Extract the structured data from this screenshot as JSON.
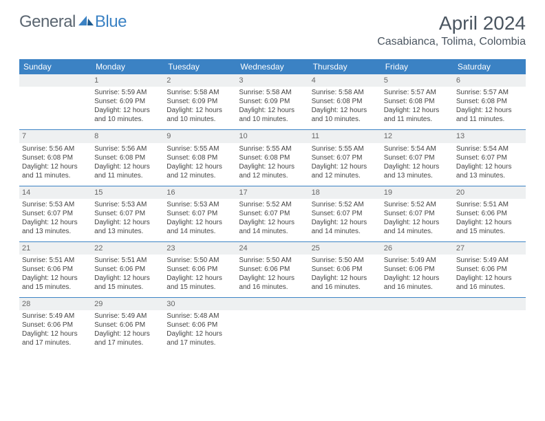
{
  "logo": {
    "text1": "General",
    "text2": "Blue"
  },
  "title": "April 2024",
  "location": "Casabianca, Tolima, Colombia",
  "colors": {
    "header_bg": "#3b82c4",
    "daynum_bg": "#eef0f1",
    "text": "#444"
  },
  "day_headers": [
    "Sunday",
    "Monday",
    "Tuesday",
    "Wednesday",
    "Thursday",
    "Friday",
    "Saturday"
  ],
  "weeks": [
    {
      "nums": [
        "",
        "1",
        "2",
        "3",
        "4",
        "5",
        "6"
      ],
      "cells": [
        null,
        {
          "sunrise": "Sunrise: 5:59 AM",
          "sunset": "Sunset: 6:09 PM",
          "day1": "Daylight: 12 hours",
          "day2": "and 10 minutes."
        },
        {
          "sunrise": "Sunrise: 5:58 AM",
          "sunset": "Sunset: 6:09 PM",
          "day1": "Daylight: 12 hours",
          "day2": "and 10 minutes."
        },
        {
          "sunrise": "Sunrise: 5:58 AM",
          "sunset": "Sunset: 6:09 PM",
          "day1": "Daylight: 12 hours",
          "day2": "and 10 minutes."
        },
        {
          "sunrise": "Sunrise: 5:58 AM",
          "sunset": "Sunset: 6:08 PM",
          "day1": "Daylight: 12 hours",
          "day2": "and 10 minutes."
        },
        {
          "sunrise": "Sunrise: 5:57 AM",
          "sunset": "Sunset: 6:08 PM",
          "day1": "Daylight: 12 hours",
          "day2": "and 11 minutes."
        },
        {
          "sunrise": "Sunrise: 5:57 AM",
          "sunset": "Sunset: 6:08 PM",
          "day1": "Daylight: 12 hours",
          "day2": "and 11 minutes."
        }
      ]
    },
    {
      "nums": [
        "7",
        "8",
        "9",
        "10",
        "11",
        "12",
        "13"
      ],
      "cells": [
        {
          "sunrise": "Sunrise: 5:56 AM",
          "sunset": "Sunset: 6:08 PM",
          "day1": "Daylight: 12 hours",
          "day2": "and 11 minutes."
        },
        {
          "sunrise": "Sunrise: 5:56 AM",
          "sunset": "Sunset: 6:08 PM",
          "day1": "Daylight: 12 hours",
          "day2": "and 11 minutes."
        },
        {
          "sunrise": "Sunrise: 5:55 AM",
          "sunset": "Sunset: 6:08 PM",
          "day1": "Daylight: 12 hours",
          "day2": "and 12 minutes."
        },
        {
          "sunrise": "Sunrise: 5:55 AM",
          "sunset": "Sunset: 6:08 PM",
          "day1": "Daylight: 12 hours",
          "day2": "and 12 minutes."
        },
        {
          "sunrise": "Sunrise: 5:55 AM",
          "sunset": "Sunset: 6:07 PM",
          "day1": "Daylight: 12 hours",
          "day2": "and 12 minutes."
        },
        {
          "sunrise": "Sunrise: 5:54 AM",
          "sunset": "Sunset: 6:07 PM",
          "day1": "Daylight: 12 hours",
          "day2": "and 13 minutes."
        },
        {
          "sunrise": "Sunrise: 5:54 AM",
          "sunset": "Sunset: 6:07 PM",
          "day1": "Daylight: 12 hours",
          "day2": "and 13 minutes."
        }
      ]
    },
    {
      "nums": [
        "14",
        "15",
        "16",
        "17",
        "18",
        "19",
        "20"
      ],
      "cells": [
        {
          "sunrise": "Sunrise: 5:53 AM",
          "sunset": "Sunset: 6:07 PM",
          "day1": "Daylight: 12 hours",
          "day2": "and 13 minutes."
        },
        {
          "sunrise": "Sunrise: 5:53 AM",
          "sunset": "Sunset: 6:07 PM",
          "day1": "Daylight: 12 hours",
          "day2": "and 13 minutes."
        },
        {
          "sunrise": "Sunrise: 5:53 AM",
          "sunset": "Sunset: 6:07 PM",
          "day1": "Daylight: 12 hours",
          "day2": "and 14 minutes."
        },
        {
          "sunrise": "Sunrise: 5:52 AM",
          "sunset": "Sunset: 6:07 PM",
          "day1": "Daylight: 12 hours",
          "day2": "and 14 minutes."
        },
        {
          "sunrise": "Sunrise: 5:52 AM",
          "sunset": "Sunset: 6:07 PM",
          "day1": "Daylight: 12 hours",
          "day2": "and 14 minutes."
        },
        {
          "sunrise": "Sunrise: 5:52 AM",
          "sunset": "Sunset: 6:07 PM",
          "day1": "Daylight: 12 hours",
          "day2": "and 14 minutes."
        },
        {
          "sunrise": "Sunrise: 5:51 AM",
          "sunset": "Sunset: 6:06 PM",
          "day1": "Daylight: 12 hours",
          "day2": "and 15 minutes."
        }
      ]
    },
    {
      "nums": [
        "21",
        "22",
        "23",
        "24",
        "25",
        "26",
        "27"
      ],
      "cells": [
        {
          "sunrise": "Sunrise: 5:51 AM",
          "sunset": "Sunset: 6:06 PM",
          "day1": "Daylight: 12 hours",
          "day2": "and 15 minutes."
        },
        {
          "sunrise": "Sunrise: 5:51 AM",
          "sunset": "Sunset: 6:06 PM",
          "day1": "Daylight: 12 hours",
          "day2": "and 15 minutes."
        },
        {
          "sunrise": "Sunrise: 5:50 AM",
          "sunset": "Sunset: 6:06 PM",
          "day1": "Daylight: 12 hours",
          "day2": "and 15 minutes."
        },
        {
          "sunrise": "Sunrise: 5:50 AM",
          "sunset": "Sunset: 6:06 PM",
          "day1": "Daylight: 12 hours",
          "day2": "and 16 minutes."
        },
        {
          "sunrise": "Sunrise: 5:50 AM",
          "sunset": "Sunset: 6:06 PM",
          "day1": "Daylight: 12 hours",
          "day2": "and 16 minutes."
        },
        {
          "sunrise": "Sunrise: 5:49 AM",
          "sunset": "Sunset: 6:06 PM",
          "day1": "Daylight: 12 hours",
          "day2": "and 16 minutes."
        },
        {
          "sunrise": "Sunrise: 5:49 AM",
          "sunset": "Sunset: 6:06 PM",
          "day1": "Daylight: 12 hours",
          "day2": "and 16 minutes."
        }
      ]
    },
    {
      "nums": [
        "28",
        "29",
        "30",
        "",
        "",
        "",
        ""
      ],
      "cells": [
        {
          "sunrise": "Sunrise: 5:49 AM",
          "sunset": "Sunset: 6:06 PM",
          "day1": "Daylight: 12 hours",
          "day2": "and 17 minutes."
        },
        {
          "sunrise": "Sunrise: 5:49 AM",
          "sunset": "Sunset: 6:06 PM",
          "day1": "Daylight: 12 hours",
          "day2": "and 17 minutes."
        },
        {
          "sunrise": "Sunrise: 5:48 AM",
          "sunset": "Sunset: 6:06 PM",
          "day1": "Daylight: 12 hours",
          "day2": "and 17 minutes."
        },
        null,
        null,
        null,
        null
      ]
    }
  ]
}
